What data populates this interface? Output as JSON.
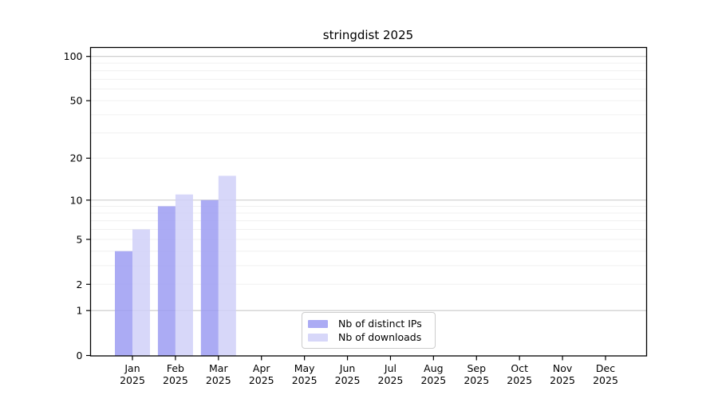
{
  "chart_data": {
    "type": "bar",
    "title": "stringdist 2025",
    "categories": [
      "Jan",
      "Feb",
      "Mar",
      "Apr",
      "May",
      "Jun",
      "Jul",
      "Aug",
      "Sep",
      "Oct",
      "Nov",
      "Dec"
    ],
    "x_tick_year": "2025",
    "series": [
      {
        "name": "Nb of distinct IPs",
        "color": "#9c9cf2",
        "values": [
          4,
          9,
          10,
          0,
          0,
          0,
          0,
          0,
          0,
          0,
          0,
          0
        ]
      },
      {
        "name": "Nb of downloads",
        "color": "#d0d0f8",
        "values": [
          6,
          11,
          15,
          0,
          0,
          0,
          0,
          0,
          0,
          0,
          0,
          0
        ]
      }
    ],
    "y_ticks": [
      0,
      1,
      2,
      5,
      10,
      20,
      50,
      100
    ],
    "y_scale": "log10(1+v)",
    "ylim": [
      0,
      115
    ],
    "grid": {
      "major_values": [
        1,
        10,
        100
      ],
      "minor_values": [
        2,
        3,
        4,
        5,
        6,
        7,
        8,
        9,
        20,
        30,
        40,
        50,
        60,
        70,
        80,
        90
      ],
      "major_color": "#c8c8c8",
      "minor_color": "#f0f0f0"
    },
    "legend_position": "inside-bottom-center",
    "frame_color": "#000000",
    "background_color": "#ffffff",
    "tick_label_color": "#000000"
  }
}
